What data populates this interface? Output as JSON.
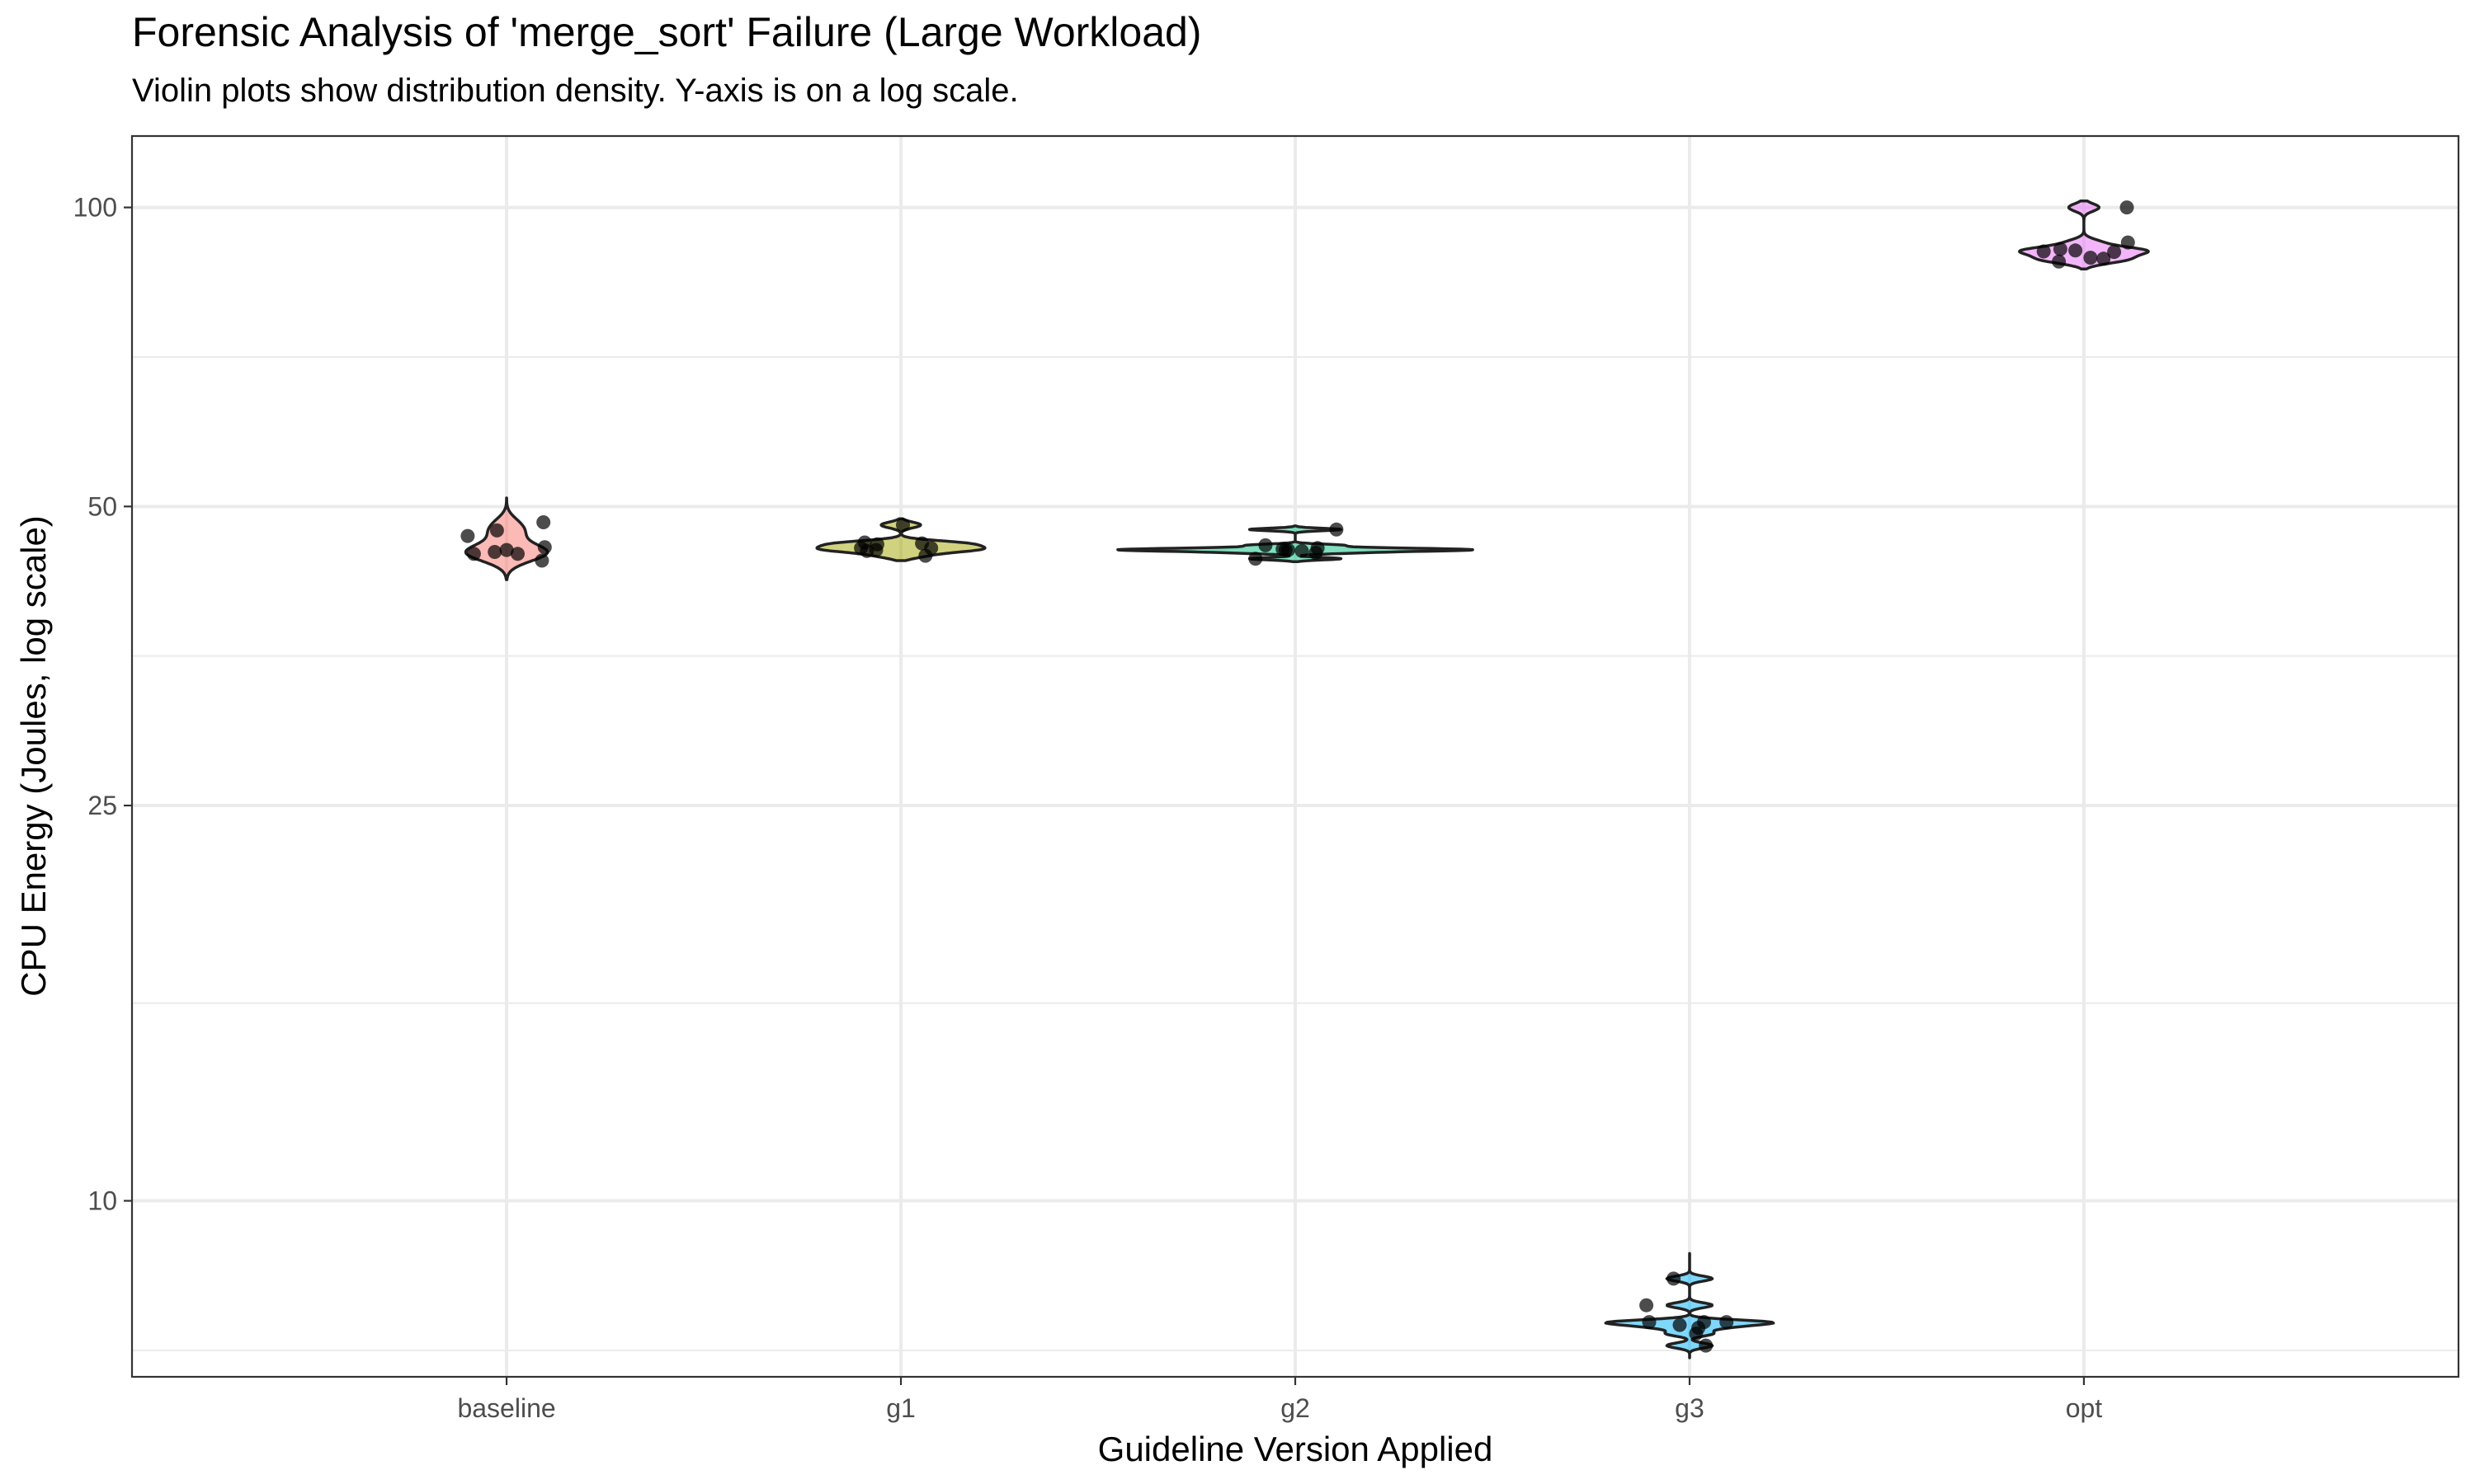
{
  "chart_data": {
    "type": "violin",
    "title": "Forensic Analysis of 'merge_sort' Failure (Large Workload)",
    "subtitle": "Violin plots show distribution density. Y-axis is on a log scale.",
    "xlabel": "Guideline Version Applied",
    "ylabel": "CPU Energy (Joules, log scale)",
    "y_scale": "log",
    "ylim": [
      6.65,
      118
    ],
    "y_ticks": [
      10,
      25,
      50,
      100
    ],
    "grid": true,
    "legend": "none",
    "categories": [
      "baseline",
      "g1",
      "g2",
      "g3",
      "opt"
    ],
    "series": [
      {
        "category": "baseline",
        "color": "#F8766D",
        "violin_range": [
          42.2,
          51.0
        ],
        "values": [
          44.1,
          45.5,
          46.7,
          47.3,
          48.2,
          44.8,
          45.0,
          45.2,
          44.8
        ]
      },
      {
        "category": "g1",
        "color": "#A3A500",
        "violin_range": [
          44.1,
          48.6
        ],
        "values": [
          45.1,
          45.4,
          45.9,
          45.4,
          45.8,
          46.0,
          44.6,
          45.2,
          47.9
        ]
      },
      {
        "category": "g2",
        "color": "#00BF7D",
        "violin_range": [
          44.0,
          47.8
        ],
        "values": [
          45.3,
          45.4,
          45.2,
          44.9,
          45.1,
          44.3,
          45.7,
          47.4,
          45.2
        ]
      },
      {
        "category": "g3",
        "color": "#00B0F6",
        "violin_range": [
          6.95,
          8.85
        ],
        "values": [
          7.45,
          7.55,
          7.55,
          7.5,
          7.55,
          7.85,
          7.35,
          7.15,
          8.35
        ]
      },
      {
        "category": "opt",
        "color": "#E76BF3",
        "violin_range": [
          86.7,
          101.5
        ],
        "values": [
          90.2,
          89.0,
          88.8,
          90.3,
          90.8,
          92.2,
          100.0,
          90.5,
          88.2
        ]
      }
    ]
  }
}
